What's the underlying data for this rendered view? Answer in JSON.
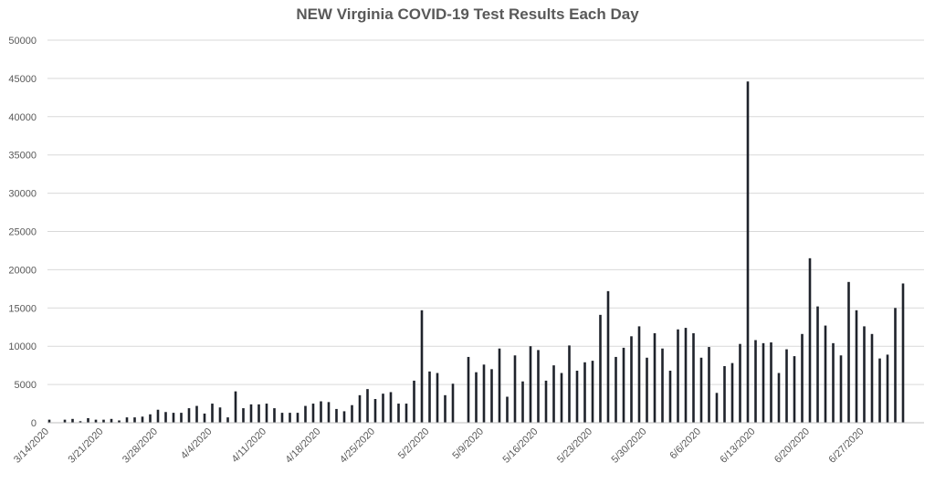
{
  "chart_data": {
    "type": "bar",
    "title": "NEW Virginia COVID-19 Test Results Each Day",
    "xlabel": "",
    "ylabel": "",
    "ylim": [
      0,
      50000
    ],
    "yticks": [
      0,
      5000,
      10000,
      15000,
      20000,
      25000,
      30000,
      35000,
      40000,
      45000,
      50000
    ],
    "start_date": "2020-03-14",
    "xtick_labels": [
      "3/14/2020",
      "3/21/2020",
      "3/28/2020",
      "4/4/2020",
      "4/11/2020",
      "4/18/2020",
      "4/25/2020",
      "5/2/2020",
      "5/9/2020",
      "5/16/2020",
      "5/23/2020",
      "5/30/2020",
      "6/6/2020",
      "6/13/2020",
      "6/20/2020",
      "6/27/2020"
    ],
    "grid": true,
    "legend": "none",
    "bar_color": "#1f232b",
    "values": [
      400,
      0,
      400,
      500,
      200,
      600,
      400,
      400,
      500,
      300,
      700,
      700,
      800,
      1100,
      1700,
      1400,
      1300,
      1300,
      1900,
      2200,
      1200,
      2500,
      2000,
      700,
      4100,
      1900,
      2400,
      2400,
      2500,
      1900,
      1300,
      1300,
      1300,
      2200,
      2500,
      2800,
      2700,
      1800,
      1500,
      2300,
      3600,
      4400,
      3100,
      3800,
      4000,
      2500,
      2500,
      5500,
      14700,
      6700,
      6500,
      3600,
      5100,
      0,
      8600,
      6600,
      7600,
      7000,
      9700,
      3400,
      8800,
      5400,
      10000,
      9500,
      5500,
      7500,
      6500,
      10100,
      6800,
      7900,
      8100,
      14100,
      17200,
      8600,
      9800,
      11300,
      12600,
      8500,
      11700,
      9700,
      6800,
      12200,
      12400,
      11700,
      8500,
      9900,
      3900,
      7400,
      7800,
      10300,
      44600,
      10800,
      10400,
      10500,
      6500,
      9600,
      8700,
      11600,
      21500,
      15200,
      12700,
      10400,
      8800,
      18400,
      14700,
      12600,
      11600,
      8400,
      8900,
      15000,
      18200
    ]
  }
}
